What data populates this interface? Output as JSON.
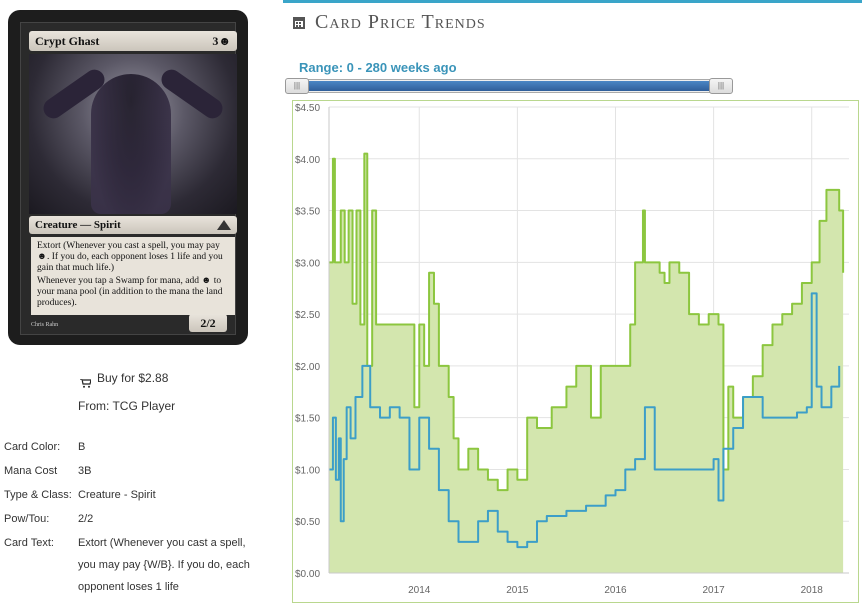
{
  "card": {
    "name": "Crypt Ghast",
    "mana_cost": "3",
    "mana_symbol": "☻",
    "type_line": "Creature — Spirit",
    "rules_1": "Extort (Whenever you cast a spell, you may pay ☻. If you do, each opponent loses 1 life and you gain that much life.)",
    "rules_2": "Whenever you tap a Swamp for mana, add ☻ to your mana pool (in addition to the mana the land produces).",
    "pt": "2/2",
    "artist": "Chris Rahn"
  },
  "buy": {
    "label": "Buy for $2.88",
    "from": "From: TCG Player"
  },
  "details": [
    {
      "key": "Card Color:",
      "value": "B"
    },
    {
      "key": "Mana Cost",
      "value": "3B"
    },
    {
      "key": "Type & Class:",
      "value": "Creature - Spirit"
    },
    {
      "key": "Pow/Tou:",
      "value": "2/2"
    },
    {
      "key": "Card Text:",
      "value": "Extort (Whenever you cast a spell, you may pay {W/B}. If you do, each opponent loses 1 life"
    }
  ],
  "section": {
    "title": "Card Price Trends"
  },
  "range": {
    "label": "Range: 0 - 280 weeks ago",
    "min": 0,
    "max": 280
  },
  "colors": {
    "accent": "#3aa5c9",
    "green": "#8cc63f",
    "green_fill": "#d3e6ae",
    "blue": "#3c9ec8"
  },
  "chart_data": {
    "type": "area",
    "y_ticks": [
      "$0.00",
      "$0.50",
      "$1.00",
      "$1.50",
      "$2.00",
      "$2.50",
      "$3.00",
      "$3.50",
      "$4.00",
      "$4.50"
    ],
    "x_ticks": [
      "2014",
      "2015",
      "2016",
      "2017",
      "2018"
    ],
    "ylim": [
      0,
      4.5
    ],
    "xlim": [
      2013.08,
      2018.38
    ],
    "series": [
      {
        "name": "",
        "color": "#8cc63f",
        "fill": true,
        "points": [
          [
            2013.08,
            3.0
          ],
          [
            2013.12,
            4.0
          ],
          [
            2013.14,
            3.0
          ],
          [
            2013.2,
            3.5
          ],
          [
            2013.24,
            3.0
          ],
          [
            2013.28,
            3.5
          ],
          [
            2013.32,
            2.6
          ],
          [
            2013.36,
            3.5
          ],
          [
            2013.4,
            2.4
          ],
          [
            2013.44,
            4.05
          ],
          [
            2013.47,
            2.0
          ],
          [
            2013.52,
            3.5
          ],
          [
            2013.56,
            2.4
          ],
          [
            2013.9,
            2.4
          ],
          [
            2013.95,
            1.6
          ],
          [
            2014.0,
            2.4
          ],
          [
            2014.05,
            2.0
          ],
          [
            2014.1,
            2.9
          ],
          [
            2014.15,
            2.6
          ],
          [
            2014.2,
            2.0
          ],
          [
            2014.3,
            1.7
          ],
          [
            2014.35,
            1.3
          ],
          [
            2014.4,
            1.0
          ],
          [
            2014.5,
            1.2
          ],
          [
            2014.6,
            1.0
          ],
          [
            2014.7,
            0.9
          ],
          [
            2014.8,
            0.8
          ],
          [
            2014.9,
            1.0
          ],
          [
            2015.0,
            0.9
          ],
          [
            2015.1,
            1.5
          ],
          [
            2015.2,
            1.4
          ],
          [
            2015.35,
            1.6
          ],
          [
            2015.5,
            1.8
          ],
          [
            2015.6,
            2.0
          ],
          [
            2015.75,
            1.5
          ],
          [
            2015.85,
            2.0
          ],
          [
            2016.1,
            2.0
          ],
          [
            2016.15,
            2.4
          ],
          [
            2016.2,
            3.0
          ],
          [
            2016.28,
            3.5
          ],
          [
            2016.3,
            3.0
          ],
          [
            2016.45,
            2.9
          ],
          [
            2016.5,
            2.8
          ],
          [
            2016.55,
            3.0
          ],
          [
            2016.65,
            2.9
          ],
          [
            2016.75,
            2.5
          ],
          [
            2016.85,
            2.4
          ],
          [
            2016.95,
            2.5
          ],
          [
            2017.05,
            2.4
          ],
          [
            2017.1,
            1.0
          ],
          [
            2017.15,
            1.8
          ],
          [
            2017.2,
            1.5
          ],
          [
            2017.3,
            1.7
          ],
          [
            2017.4,
            1.9
          ],
          [
            2017.5,
            2.2
          ],
          [
            2017.6,
            2.4
          ],
          [
            2017.7,
            2.5
          ],
          [
            2017.8,
            2.6
          ],
          [
            2017.9,
            2.8
          ],
          [
            2018.0,
            3.0
          ],
          [
            2018.08,
            3.4
          ],
          [
            2018.15,
            3.7
          ],
          [
            2018.28,
            3.5
          ],
          [
            2018.32,
            2.9
          ]
        ]
      },
      {
        "name": "",
        "color": "#3c9ec8",
        "fill": false,
        "points": [
          [
            2013.08,
            1.0
          ],
          [
            2013.12,
            1.5
          ],
          [
            2013.15,
            0.9
          ],
          [
            2013.18,
            1.3
          ],
          [
            2013.2,
            0.5
          ],
          [
            2013.23,
            1.1
          ],
          [
            2013.26,
            1.6
          ],
          [
            2013.3,
            1.3
          ],
          [
            2013.35,
            1.7
          ],
          [
            2013.42,
            2.0
          ],
          [
            2013.5,
            1.6
          ],
          [
            2013.6,
            1.5
          ],
          [
            2013.7,
            1.6
          ],
          [
            2013.8,
            1.5
          ],
          [
            2013.9,
            1.0
          ],
          [
            2014.0,
            1.5
          ],
          [
            2014.1,
            1.2
          ],
          [
            2014.2,
            0.8
          ],
          [
            2014.3,
            0.5
          ],
          [
            2014.4,
            0.3
          ],
          [
            2014.5,
            0.3
          ],
          [
            2014.6,
            0.5
          ],
          [
            2014.7,
            0.6
          ],
          [
            2014.8,
            0.4
          ],
          [
            2014.9,
            0.3
          ],
          [
            2015.0,
            0.25
          ],
          [
            2015.1,
            0.3
          ],
          [
            2015.2,
            0.5
          ],
          [
            2015.3,
            0.55
          ],
          [
            2015.5,
            0.6
          ],
          [
            2015.7,
            0.65
          ],
          [
            2015.9,
            0.75
          ],
          [
            2016.0,
            0.8
          ],
          [
            2016.1,
            1.0
          ],
          [
            2016.2,
            1.1
          ],
          [
            2016.3,
            1.6
          ],
          [
            2016.4,
            1.0
          ],
          [
            2016.6,
            1.0
          ],
          [
            2016.8,
            1.0
          ],
          [
            2016.95,
            1.0
          ],
          [
            2017.0,
            1.1
          ],
          [
            2017.05,
            0.7
          ],
          [
            2017.1,
            1.2
          ],
          [
            2017.2,
            1.4
          ],
          [
            2017.3,
            1.7
          ],
          [
            2017.5,
            1.5
          ],
          [
            2017.7,
            1.5
          ],
          [
            2017.85,
            1.55
          ],
          [
            2017.95,
            1.6
          ],
          [
            2018.0,
            2.7
          ],
          [
            2018.05,
            1.8
          ],
          [
            2018.1,
            1.6
          ],
          [
            2018.2,
            1.8
          ],
          [
            2018.28,
            2.0
          ]
        ]
      }
    ]
  }
}
